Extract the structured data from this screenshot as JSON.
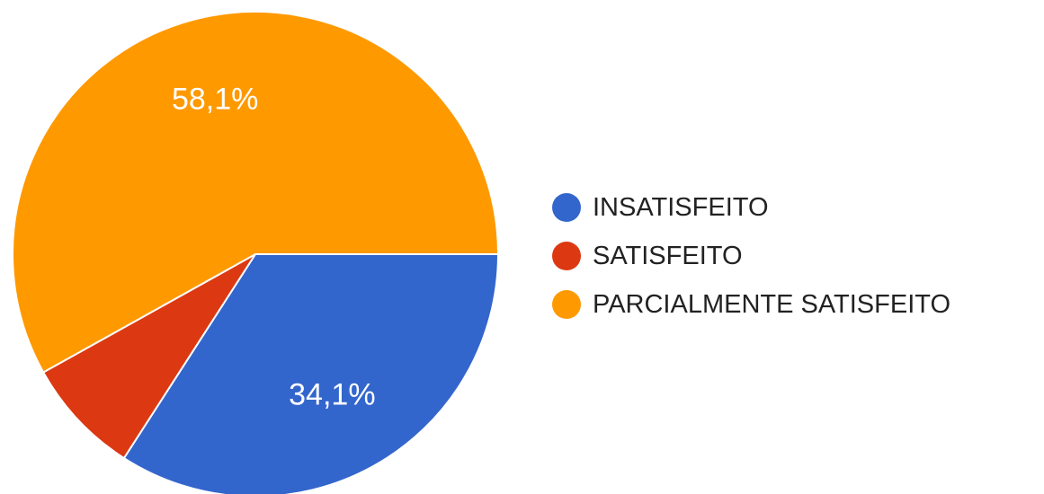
{
  "chart_data": {
    "type": "pie",
    "title": "",
    "slices": [
      {
        "name": "INSATISFEITO",
        "value": 34.1,
        "label": "34,1%",
        "color": "#3366cc"
      },
      {
        "name": "SATISFEITO",
        "value": 7.8,
        "label": "",
        "color": "#dc3912"
      },
      {
        "name": "PARCIALMENTE SATISFEITO",
        "value": 58.1,
        "label": "58,1%",
        "color": "#ff9900"
      }
    ],
    "legend": {
      "position": "right"
    }
  }
}
